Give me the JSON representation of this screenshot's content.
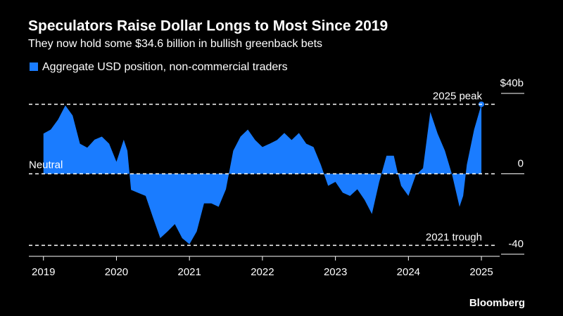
{
  "chart_data": {
    "type": "area",
    "title": "Speculators Raise Dollar Longs to Most Since 2019",
    "subtitle": "They now hold some $34.6 billion in bullish greenback bets",
    "source": "Bloomberg",
    "series": [
      {
        "name": "Aggregate USD position, non-commercial traders",
        "color": "#1a7cff",
        "x": [
          2019.0,
          2019.1,
          2019.2,
          2019.3,
          2019.4,
          2019.5,
          2019.6,
          2019.7,
          2019.8,
          2019.9,
          2020.0,
          2020.1,
          2020.15,
          2020.2,
          2020.3,
          2020.4,
          2020.5,
          2020.6,
          2020.7,
          2020.8,
          2020.9,
          2021.0,
          2021.1,
          2021.2,
          2021.3,
          2021.4,
          2021.5,
          2021.6,
          2021.7,
          2021.8,
          2021.9,
          2022.0,
          2022.1,
          2022.2,
          2022.3,
          2022.4,
          2022.5,
          2022.6,
          2022.7,
          2022.8,
          2022.9,
          2023.0,
          2023.1,
          2023.2,
          2023.3,
          2023.4,
          2023.5,
          2023.6,
          2023.7,
          2023.8,
          2023.85,
          2023.9,
          2024.0,
          2024.1,
          2024.2,
          2024.3,
          2024.4,
          2024.5,
          2024.6,
          2024.7,
          2024.75,
          2024.8,
          2024.9,
          2025.0
        ],
        "values": [
          20,
          22,
          27,
          34,
          29,
          15,
          13,
          17,
          18.5,
          15,
          6,
          17,
          11.5,
          -8,
          -9.5,
          -11,
          -21.7,
          -32,
          -28.7,
          -25,
          -32,
          -35,
          -28.7,
          -14.7,
          -14.7,
          -16.4,
          -7.7,
          11.5,
          18.5,
          22,
          16.8,
          13.3,
          15,
          16.8,
          20.3,
          16.8,
          20.3,
          15,
          13.3,
          4.5,
          -6,
          -4,
          -9.4,
          -11,
          -7.7,
          -13,
          -20,
          -4,
          9,
          9,
          1,
          -6,
          -11,
          -0.7,
          2.8,
          30.8,
          20,
          11.5,
          -0.7,
          -16.4,
          -11,
          4.5,
          22,
          34.6
        ]
      }
    ],
    "xlim": [
      2018.8,
      2025.25
    ],
    "xticks": [
      2019,
      2020,
      2021,
      2022,
      2023,
      2024,
      2025
    ],
    "ylim": [
      -40,
      40
    ],
    "yticks": [
      {
        "value": 40,
        "label": "$40b"
      },
      0,
      -40
    ],
    "reference_lines": [
      {
        "label": "2025 peak",
        "value": 34.6
      },
      {
        "label": "Neutral",
        "value": 0
      },
      {
        "label": "2021 trough",
        "value": -35.6
      }
    ]
  }
}
